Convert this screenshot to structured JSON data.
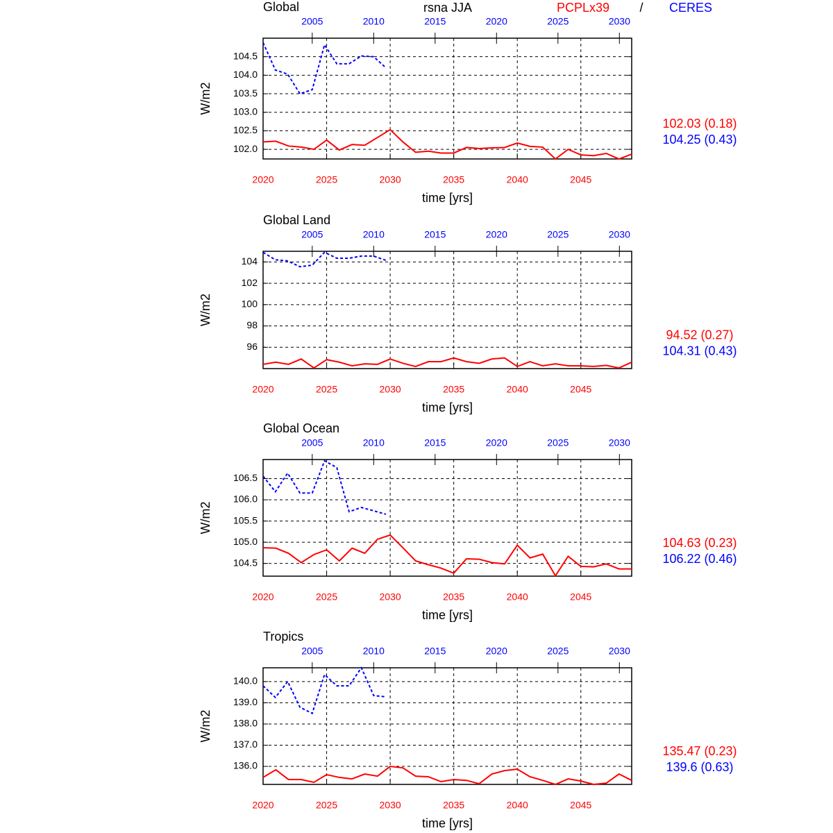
{
  "suptitle": "rsna JJA",
  "separator": "/",
  "chart_data": [
    {
      "type": "line",
      "title": "Global",
      "ylabel": "W/m2",
      "xlabel": "time [yrs]",
      "grid": true,
      "xlim": [
        2020,
        2049
      ],
      "xticks": [
        2020,
        2025,
        2030,
        2035,
        2040,
        2045
      ],
      "x2lim": [
        2001,
        2031
      ],
      "x2ticks": [
        2005,
        2010,
        2015,
        2020,
        2025,
        2030
      ],
      "ylim": [
        101.74,
        105.0
      ],
      "yticks": [
        {
          "value": 102,
          "label": "102.0"
        },
        102.5,
        {
          "value": 103,
          "label": "103.0"
        },
        103.5,
        {
          "value": 104,
          "label": "104.0"
        },
        104.5
      ],
      "series": [
        {
          "name": "PCPLx39",
          "color": "#ff0000",
          "stat": "102.03 (0.18)",
          "x": [
            2020,
            2021,
            2022,
            2023,
            2024,
            2025,
            2026,
            2027,
            2028,
            2029,
            2030,
            2031,
            2032,
            2033,
            2034,
            2035,
            2036,
            2037,
            2038,
            2039,
            2040,
            2041,
            2042,
            2043,
            2044,
            2045,
            2046,
            2047,
            2048,
            2049
          ],
          "values": [
            102.2,
            102.22,
            102.09,
            102.06,
            102.0,
            102.25,
            101.98,
            102.13,
            102.11,
            102.32,
            102.53,
            102.2,
            101.92,
            101.95,
            101.9,
            101.9,
            102.05,
            102.02,
            102.04,
            102.05,
            102.17,
            102.08,
            102.06,
            101.74,
            102.0,
            101.85,
            101.83,
            101.89,
            101.74,
            101.87
          ]
        },
        {
          "name": "CERES",
          "color": "#0000ff",
          "axis": "x2",
          "dashed": true,
          "stat": "104.25 (0.43)",
          "x": [
            2001,
            2002,
            2003,
            2004,
            2005,
            2006,
            2007,
            2008,
            2009,
            2010,
            2011
          ],
          "values": [
            104.88,
            104.14,
            104.03,
            103.5,
            103.61,
            104.82,
            104.31,
            104.31,
            104.52,
            104.5,
            104.2
          ]
        }
      ]
    },
    {
      "type": "line",
      "title": "Global Land",
      "ylabel": "W/m2",
      "xlabel": "time [yrs]",
      "grid": true,
      "xlim": [
        2020,
        2049
      ],
      "xticks": [
        2020,
        2025,
        2030,
        2035,
        2040,
        2045
      ],
      "x2lim": [
        2001,
        2031
      ],
      "x2ticks": [
        2005,
        2010,
        2015,
        2020,
        2025,
        2030
      ],
      "ylim": [
        94.0,
        105.0
      ],
      "yticks": [
        96,
        98,
        100,
        102,
        104
      ],
      "series": [
        {
          "color": "#ff0000",
          "stat": "94.52 (0.27)",
          "x": [
            2020,
            2021,
            2022,
            2023,
            2024,
            2025,
            2026,
            2027,
            2028,
            2029,
            2030,
            2031,
            2032,
            2033,
            2034,
            2035,
            2036,
            2037,
            2038,
            2039,
            2040,
            2041,
            2042,
            2043,
            2044,
            2045,
            2046,
            2047,
            2048,
            2049
          ],
          "values": [
            94.4,
            94.6,
            94.4,
            94.9,
            94.06,
            94.84,
            94.6,
            94.26,
            94.45,
            94.4,
            94.9,
            94.5,
            94.2,
            94.65,
            94.65,
            95.0,
            94.65,
            94.5,
            94.9,
            95.0,
            94.2,
            94.65,
            94.26,
            94.45,
            94.26,
            94.26,
            94.2,
            94.3,
            94.06,
            94.6
          ]
        },
        {
          "color": "#0000ff",
          "axis": "x2",
          "dashed": true,
          "stat": "104.31 (0.43)",
          "x": [
            2001,
            2002,
            2003,
            2004,
            2005,
            2006,
            2007,
            2008,
            2009,
            2010,
            2011
          ],
          "values": [
            104.9,
            104.2,
            104.1,
            103.55,
            103.7,
            104.9,
            104.35,
            104.35,
            104.55,
            104.55,
            104.15
          ]
        }
      ]
    },
    {
      "type": "line",
      "title": "Global Ocean",
      "ylabel": "W/m2",
      "xlabel": "time [yrs]",
      "grid": true,
      "xlim": [
        2020,
        2049
      ],
      "xticks": [
        2020,
        2025,
        2030,
        2035,
        2040,
        2045
      ],
      "x2lim": [
        2001,
        2031
      ],
      "x2ticks": [
        2005,
        2010,
        2015,
        2020,
        2025,
        2030
      ],
      "ylim": [
        104.2,
        106.95
      ],
      "yticks": [
        104.5,
        {
          "value": 105,
          "label": "105.0"
        },
        105.5,
        {
          "value": 106,
          "label": "106.0"
        },
        106.5
      ],
      "series": [
        {
          "color": "#ff0000",
          "stat": "104.63 (0.23)",
          "x": [
            2020,
            2021,
            2022,
            2023,
            2024,
            2025,
            2026,
            2027,
            2028,
            2029,
            2030,
            2031,
            2032,
            2033,
            2034,
            2035,
            2036,
            2037,
            2038,
            2039,
            2040,
            2041,
            2042,
            2043,
            2044,
            2045,
            2046,
            2047,
            2048,
            2049
          ],
          "values": [
            104.87,
            104.86,
            104.74,
            104.52,
            104.71,
            104.82,
            104.56,
            104.86,
            104.74,
            105.07,
            105.17,
            104.87,
            104.56,
            104.47,
            104.39,
            104.27,
            104.61,
            104.6,
            104.52,
            104.49,
            104.93,
            104.63,
            104.72,
            104.21,
            104.67,
            104.43,
            104.42,
            104.49,
            104.37,
            104.37
          ]
        },
        {
          "color": "#0000ff",
          "axis": "x2",
          "dashed": true,
          "stat": "106.22 (0.46)",
          "x": [
            2001,
            2002,
            2003,
            2004,
            2005,
            2006,
            2007,
            2008,
            2009,
            2010,
            2011
          ],
          "values": [
            106.56,
            106.19,
            106.63,
            106.16,
            106.16,
            106.92,
            106.76,
            105.72,
            105.82,
            105.74,
            105.66
          ]
        }
      ]
    },
    {
      "type": "line",
      "title": "Tropics",
      "ylabel": "W/m2",
      "xlabel": "time [yrs]",
      "grid": true,
      "xlim": [
        2020,
        2049
      ],
      "xticks": [
        2020,
        2025,
        2030,
        2035,
        2040,
        2045
      ],
      "x2lim": [
        2001,
        2031
      ],
      "x2ticks": [
        2005,
        2010,
        2015,
        2020,
        2025,
        2030
      ],
      "ylim": [
        135.15,
        140.65
      ],
      "yticks": [
        {
          "value": 136,
          "label": "136.0"
        },
        {
          "value": 137,
          "label": "137.0"
        },
        {
          "value": 138,
          "label": "138.0"
        },
        {
          "value": 139,
          "label": "139.0"
        },
        {
          "value": 140,
          "label": "140.0"
        }
      ],
      "series": [
        {
          "color": "#ff0000",
          "stat": "135.47 (0.23)",
          "x": [
            2020,
            2021,
            2022,
            2023,
            2024,
            2025,
            2026,
            2027,
            2028,
            2029,
            2030,
            2031,
            2032,
            2033,
            2034,
            2035,
            2036,
            2037,
            2038,
            2039,
            2040,
            2041,
            2042,
            2043,
            2044,
            2045,
            2046,
            2047,
            2048,
            2049
          ],
          "values": [
            135.48,
            135.84,
            135.38,
            135.38,
            135.25,
            135.61,
            135.48,
            135.41,
            135.64,
            135.54,
            136.0,
            135.93,
            135.54,
            135.51,
            135.28,
            135.38,
            135.34,
            135.18,
            135.64,
            135.8,
            135.87,
            135.51,
            135.34,
            135.15,
            135.41,
            135.31,
            135.15,
            135.21,
            135.64,
            135.34
          ]
        },
        {
          "color": "#0000ff",
          "axis": "x2",
          "dashed": true,
          "stat": "139.6 (0.63)",
          "x": [
            2001,
            2002,
            2003,
            2004,
            2005,
            2006,
            2007,
            2008,
            2009,
            2010,
            2011
          ],
          "values": [
            139.8,
            139.25,
            140.0,
            138.79,
            138.5,
            140.33,
            139.8,
            139.8,
            140.65,
            139.34,
            139.28
          ]
        }
      ]
    }
  ]
}
